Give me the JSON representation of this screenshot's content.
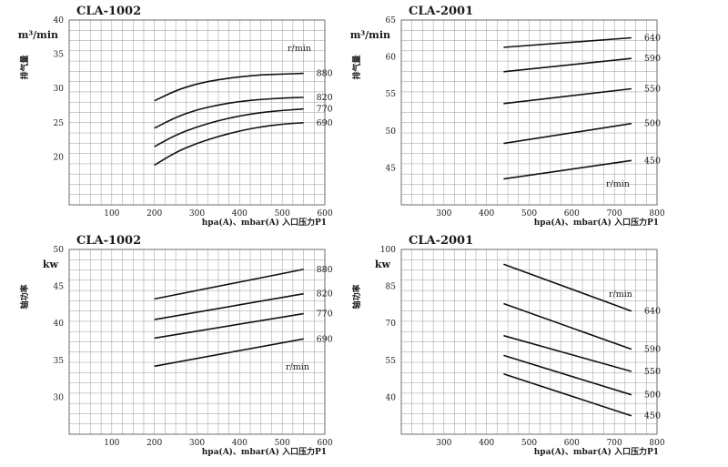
{
  "chart_data": [
    {
      "type": "line",
      "title": "CLA-1002",
      "y_unit": "m³/min",
      "ylabel": "排气量",
      "xlabel": "hpa(A)、mbar(A) 入口压力P1",
      "series_label": "r/min",
      "xlim": [
        0,
        600
      ],
      "ylim": [
        13,
        40
      ],
      "x_ticks": [
        100,
        200,
        300,
        400,
        500,
        600
      ],
      "y_ticks": [
        20,
        25,
        30,
        35,
        40
      ],
      "grid": true,
      "series": [
        {
          "name": "880",
          "points": [
            [
              200,
              28.2
            ],
            [
              250,
              29.7
            ],
            [
              300,
              30.7
            ],
            [
              350,
              31.3
            ],
            [
              400,
              31.7
            ],
            [
              450,
              32.0
            ],
            [
              500,
              32.1
            ],
            [
              550,
              32.2
            ]
          ]
        },
        {
          "name": "820",
          "points": [
            [
              200,
              24.2
            ],
            [
              250,
              25.8
            ],
            [
              300,
              26.9
            ],
            [
              350,
              27.6
            ],
            [
              400,
              28.1
            ],
            [
              450,
              28.4
            ],
            [
              500,
              28.6
            ],
            [
              550,
              28.7
            ]
          ]
        },
        {
          "name": "770",
          "points": [
            [
              200,
              21.5
            ],
            [
              250,
              23.2
            ],
            [
              300,
              24.4
            ],
            [
              350,
              25.3
            ],
            [
              400,
              26.0
            ],
            [
              450,
              26.5
            ],
            [
              500,
              26.8
            ],
            [
              550,
              27.0
            ]
          ]
        },
        {
          "name": "690",
          "points": [
            [
              200,
              18.8
            ],
            [
              250,
              20.7
            ],
            [
              300,
              22.0
            ],
            [
              350,
              23.0
            ],
            [
              400,
              23.8
            ],
            [
              450,
              24.4
            ],
            [
              500,
              24.8
            ],
            [
              550,
              25.0
            ]
          ]
        }
      ]
    },
    {
      "type": "line",
      "title": "CLA-2001",
      "y_unit": "m³/min",
      "ylabel": "排气量",
      "xlabel": "hpa(A)、mbar(A) 入口压力P1",
      "series_label": "r/min",
      "xlim": [
        200,
        800
      ],
      "ylim": [
        40,
        65
      ],
      "x_ticks": [
        300,
        400,
        500,
        600,
        700,
        800
      ],
      "y_ticks": [
        45,
        50,
        55,
        60,
        65
      ],
      "grid": true,
      "series": [
        {
          "name": "640",
          "points": [
            [
              440,
              61.3
            ],
            [
              740,
              62.6
            ]
          ]
        },
        {
          "name": "590",
          "points": [
            [
              440,
              58.0
            ],
            [
              740,
              59.8
            ]
          ]
        },
        {
          "name": "550",
          "points": [
            [
              440,
              53.7
            ],
            [
              740,
              55.7
            ]
          ]
        },
        {
          "name": "500",
          "points": [
            [
              440,
              48.3
            ],
            [
              740,
              51.0
            ]
          ]
        },
        {
          "name": "450",
          "points": [
            [
              440,
              43.5
            ],
            [
              740,
              46.0
            ]
          ]
        }
      ]
    },
    {
      "type": "line",
      "title": "CLA-1002",
      "y_unit": "kw",
      "ylabel": "轴功率",
      "xlabel": "hpa(A)、mbar(A) 入口压力P1",
      "series_label": "r/min",
      "xlim": [
        0,
        600
      ],
      "ylim": [
        25,
        50
      ],
      "x_ticks": [
        100,
        200,
        300,
        400,
        500,
        600
      ],
      "y_ticks": [
        30,
        35,
        40,
        45,
        50
      ],
      "grid": true,
      "series": [
        {
          "name": "880",
          "points": [
            [
              200,
              43.3
            ],
            [
              550,
              47.3
            ]
          ]
        },
        {
          "name": "820",
          "points": [
            [
              200,
              40.5
            ],
            [
              550,
              44.0
            ]
          ]
        },
        {
          "name": "770",
          "points": [
            [
              200,
              38.0
            ],
            [
              550,
              41.3
            ]
          ]
        },
        {
          "name": "690",
          "points": [
            [
              200,
              34.2
            ],
            [
              550,
              37.9
            ]
          ]
        }
      ]
    },
    {
      "type": "line",
      "title": "CLA-2001",
      "y_unit": "kw",
      "ylabel": "轴功率",
      "xlabel": "hpa(A)、mbar(A) 入口压力P1",
      "series_label": "r/min",
      "xlim": [
        200,
        800
      ],
      "ylim": [
        25,
        100
      ],
      "x_ticks": [
        300,
        400,
        500,
        600,
        700,
        800
      ],
      "y_ticks": [
        40,
        55,
        70,
        85,
        100
      ],
      "grid": true,
      "series": [
        {
          "name": "640",
          "points": [
            [
              440,
              94.0
            ],
            [
              740,
              75.0
            ]
          ]
        },
        {
          "name": "590",
          "points": [
            [
              440,
              78.0
            ],
            [
              740,
              59.5
            ]
          ]
        },
        {
          "name": "550",
          "points": [
            [
              440,
              65.0
            ],
            [
              740,
              50.5
            ]
          ]
        },
        {
          "name": "500",
          "points": [
            [
              440,
              57.0
            ],
            [
              740,
              41.0
            ]
          ]
        },
        {
          "name": "450",
          "points": [
            [
              440,
              49.5
            ],
            [
              740,
              32.5
            ]
          ]
        }
      ]
    }
  ]
}
